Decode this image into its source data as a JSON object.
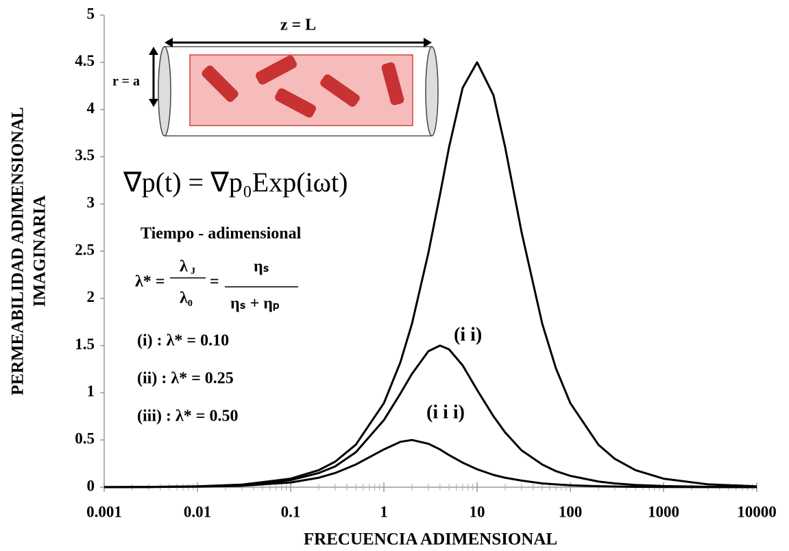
{
  "chart_data": {
    "type": "line",
    "ylabel": [
      "PERMEABILIDAD ADIMENSIONAL",
      "IMAGINARIA"
    ],
    "xlabel": "FRECUENCIA ADIMENSIONAL",
    "xscale": "log",
    "xlim": [
      0.001,
      10000
    ],
    "xticks": [
      0.001,
      0.01,
      0.1,
      1,
      10,
      100,
      1000,
      10000
    ],
    "ylim": [
      0,
      5
    ],
    "yticks": [
      0,
      0.5,
      1,
      1.5,
      2,
      2.5,
      3,
      3.5,
      4,
      4.5,
      5
    ],
    "x": [
      0.001,
      0.003,
      0.01,
      0.03,
      0.1,
      0.2,
      0.3,
      0.5,
      1,
      1.5,
      2,
      3,
      4,
      5,
      7,
      10,
      15,
      20,
      30,
      50,
      70,
      100,
      200,
      300,
      500,
      1000,
      3000,
      10000
    ],
    "series": [
      {
        "name": "(i) :  λ* = 0.10",
        "color": "#000000",
        "values": [
          0.001,
          0.003,
          0.009,
          0.027,
          0.09,
          0.18,
          0.27,
          0.45,
          0.89,
          1.32,
          1.73,
          2.48,
          3.1,
          3.6,
          4.23,
          4.5,
          4.15,
          3.6,
          2.7,
          1.73,
          1.26,
          0.89,
          0.45,
          0.3,
          0.18,
          0.09,
          0.03,
          0.009
        ]
      },
      {
        "name": "(ii) :  λ* = 0.25",
        "color": "#000000",
        "values": [
          0.001,
          0.002,
          0.008,
          0.022,
          0.075,
          0.15,
          0.22,
          0.37,
          0.71,
          0.99,
          1.2,
          1.44,
          1.5,
          1.46,
          1.29,
          1.03,
          0.75,
          0.58,
          0.39,
          0.24,
          0.17,
          0.12,
          0.06,
          0.04,
          0.024,
          0.012,
          0.004,
          0.001
        ]
      },
      {
        "name": "(iii) :  λ* = 0.50",
        "color": "#000000",
        "values": [
          0,
          0.002,
          0.005,
          0.015,
          0.05,
          0.1,
          0.15,
          0.24,
          0.4,
          0.48,
          0.5,
          0.46,
          0.4,
          0.34,
          0.26,
          0.19,
          0.13,
          0.1,
          0.07,
          0.04,
          0.03,
          0.02,
          0.01,
          0.007,
          0.004,
          0.002,
          0.001,
          0
        ]
      }
    ],
    "annotations": {
      "curve_ii": "(i i)",
      "curve_iii": "(i i i)",
      "length_label": "z = L",
      "radius_label": "r = a",
      "equation": "∇p(t) = ∇p₀Exp(iωt)",
      "time_label": "Tiempo - adimensional",
      "lambda_lhs": "λ* =",
      "lambda_num": "λ",
      "lambda_num_sub": "J",
      "lambda_den": "λ₀",
      "lambda_eq": "=",
      "eta_num": "ηₛ",
      "eta_den": "ηₛ + ηₚ"
    }
  }
}
